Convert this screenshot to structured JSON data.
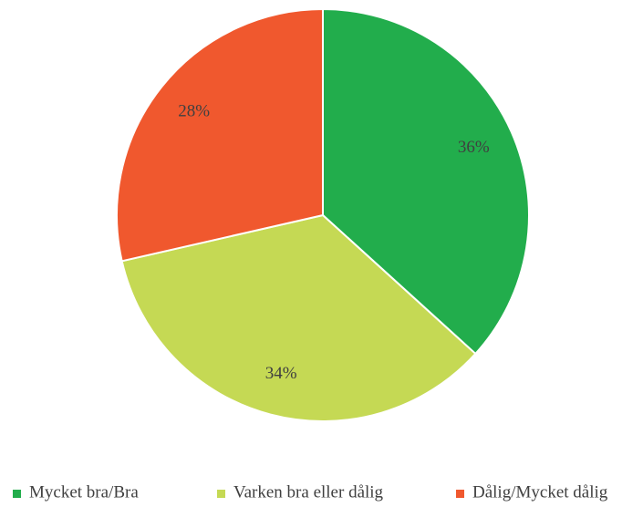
{
  "chart_data": {
    "type": "pie",
    "categories": [
      "Mycket bra/Bra",
      "Varken bra eller dålig",
      "Dålig/Mycket dålig"
    ],
    "values": [
      36,
      34,
      28
    ],
    "value_labels": [
      "36%",
      "34%",
      "28%"
    ],
    "colors": [
      "#22ad4c",
      "#c5d954",
      "#f0582e"
    ],
    "legend": "bottom"
  }
}
